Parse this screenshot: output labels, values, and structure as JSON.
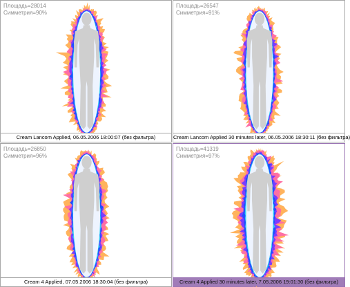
{
  "colors": {
    "outer": "#ffb35c",
    "mid": "#ff6fa3",
    "violet": "#7a3cff",
    "blue": "#1e50ff",
    "cyan": "#38c8f4",
    "body": "#cfcfcf",
    "selected_caption": "#a07cb8"
  },
  "icons": [
    "human-silhouette-icon"
  ],
  "panels": [
    {
      "area": "Площадь=28014",
      "symmetry": "Симметрия=90%",
      "caption": "Cream Lancom Applied, 06.05.2006 18:00:07 (без фильтра)",
      "glow_strength": 0.6,
      "selected": false
    },
    {
      "area": "Площадь=26547",
      "symmetry": "Симметрия=91%",
      "caption": "Cream Lancom Applied 30 minutes later, 06.05.2006 18:30:11 (без фильтра)",
      "glow_strength": 0.55,
      "selected": false
    },
    {
      "area": "Площадь=26850",
      "symmetry": "Симметрия=96%",
      "caption": "Cream 4 Applied, 07.05.2006 18:30:04 (без фильтра)",
      "glow_strength": 0.58,
      "selected": false
    },
    {
      "area": "Площадь=41319",
      "symmetry": "Симметрия=97%",
      "caption": "Cream 4 Applied 30 minutes later, 7.05.2006 19:01:30 (без фильтра)",
      "glow_strength": 0.9,
      "selected": true
    }
  ]
}
